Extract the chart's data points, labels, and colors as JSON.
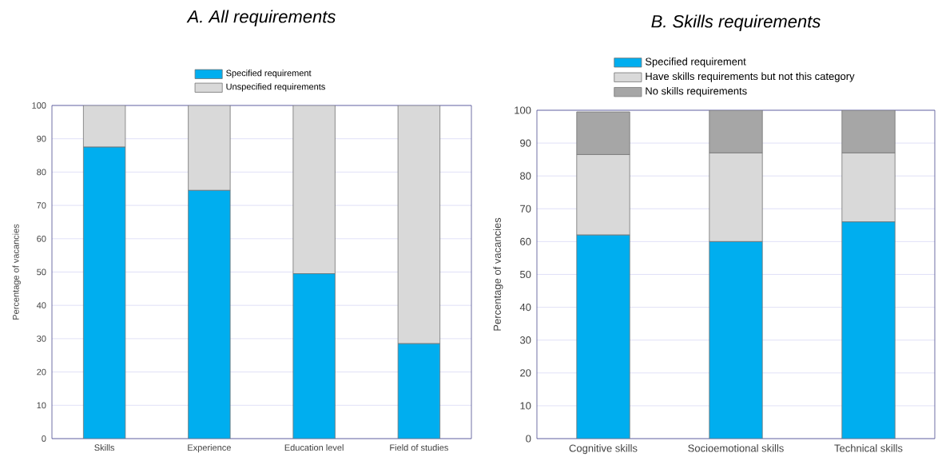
{
  "chart_data": [
    {
      "type": "bar",
      "stacked": true,
      "title": "A.   All requirements",
      "ylabel": "Percentage of vacancies",
      "categories": [
        "Skills",
        "Experience",
        "Education level",
        "Field of studies"
      ],
      "series": [
        {
          "name": "Specified requirement",
          "color": "#00aeef",
          "values": [
            87.5,
            74.5,
            49.5,
            28.5
          ]
        },
        {
          "name": "Unspecified requirements",
          "color": "#d9d9d9",
          "values": [
            12.5,
            25.5,
            50.5,
            71.5
          ]
        }
      ],
      "ylim": [
        0,
        100
      ],
      "yticks": [
        0,
        10,
        20,
        30,
        40,
        50,
        60,
        70,
        80,
        90,
        100
      ],
      "grid": "y",
      "legend": "top"
    },
    {
      "type": "bar",
      "stacked": true,
      "title": "B.   Skills requirements",
      "ylabel": "Percentage of vacancies",
      "categories": [
        "Cognitive skills",
        "Socioemotional skills",
        "Technical skills"
      ],
      "series": [
        {
          "name": "Specified requirement",
          "color": "#00aeef",
          "values": [
            62,
            60,
            66
          ]
        },
        {
          "name": "Have skills requirements but not this category",
          "color": "#d9d9d9",
          "values": [
            24.5,
            27,
            21
          ]
        },
        {
          "name": "No skills requirements",
          "color": "#a6a6a6",
          "values": [
            13,
            13,
            13
          ]
        }
      ],
      "ylim": [
        0,
        100
      ],
      "yticks": [
        0,
        10,
        20,
        30,
        40,
        50,
        60,
        70,
        80,
        90,
        100
      ],
      "grid": "y",
      "legend": "top"
    }
  ]
}
